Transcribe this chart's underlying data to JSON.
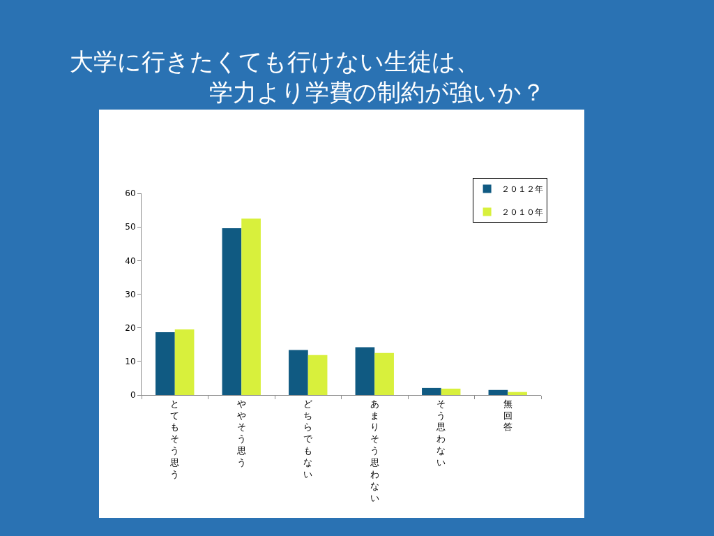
{
  "chart_data": {
    "type": "bar",
    "title": "大学に行きたくても行けない生徒は、学力より学費の制約が強いか？",
    "categories": [
      "とてもそう思う",
      "ややそう思う",
      "どちらでもない",
      "あまりそう思わない",
      "そう思わない",
      "無回答"
    ],
    "series": [
      {
        "name": "２０１２年",
        "color": "#105a82",
        "values": [
          18.7,
          49.6,
          13.4,
          14.2,
          2.1,
          1.5
        ]
      },
      {
        "name": "２０１０年",
        "color": "#d8f03c",
        "values": [
          19.5,
          52.5,
          11.9,
          12.5,
          1.9,
          0.9
        ]
      }
    ],
    "ylim": [
      0,
      60
    ],
    "yticks": [
      0,
      10,
      20,
      30,
      40,
      50,
      60
    ],
    "grid": false,
    "legend": "top right"
  }
}
